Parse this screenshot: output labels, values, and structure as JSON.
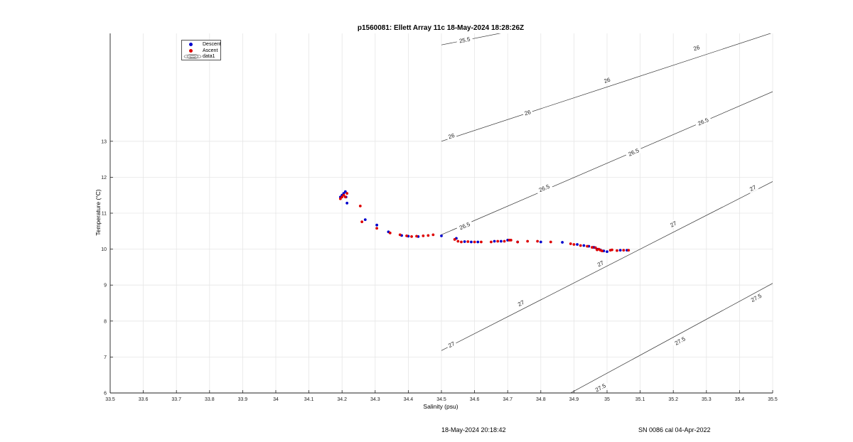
{
  "footer": {
    "date": "18-May-2024 20:18:42",
    "serial": "SN 0086 cal 04-Apr-2022"
  },
  "legend": {
    "items": [
      {
        "label": "Descent",
        "color": "#0000cc"
      },
      {
        "label": "Ascent",
        "color": "#dd0000"
      },
      {
        "label": "data1",
        "icon": "contour-ellipse-icon"
      }
    ]
  },
  "chart_data": {
    "type": "scatter",
    "title": "p1560081: Ellett Array 11c 18-May-2024 18:28:26Z",
    "xlabel": "Salinity (psu)",
    "ylabel": "Temperature (°C)",
    "xlim": [
      33.5,
      35.5
    ],
    "ylim": [
      6,
      16
    ],
    "grid": true,
    "legend_position": "top-left",
    "x_ticks": [
      "33.5",
      "33.6",
      "33.7",
      "33.8",
      "33.9",
      "34",
      "34.1",
      "34.2",
      "34.3",
      "34.4",
      "34.5",
      "34.6",
      "34.7",
      "34.8",
      "34.9",
      "35",
      "35.1",
      "35.2",
      "35.3",
      "35.4",
      "35.5"
    ],
    "y_ticks": [
      "6",
      "7",
      "8",
      "9",
      "10",
      "11",
      "12",
      "13"
    ],
    "series": [
      {
        "name": "Descent",
        "color": "#0000cc",
        "x": [
          34.195,
          34.2,
          34.205,
          34.21,
          34.212,
          34.215,
          34.27,
          34.305,
          34.34,
          34.38,
          34.4,
          34.43,
          34.5,
          34.545,
          34.57,
          34.59,
          34.61,
          34.66,
          34.68,
          34.7,
          34.73,
          34.8,
          34.865,
          34.91,
          34.93,
          34.945,
          34.96,
          34.97,
          34.98,
          34.99,
          35.0,
          35.04,
          35.06
        ],
        "y": [
          11.45,
          11.5,
          11.55,
          11.6,
          11.45,
          11.28,
          10.82,
          10.67,
          10.48,
          10.38,
          10.36,
          10.35,
          10.37,
          10.3,
          10.21,
          10.2,
          10.2,
          10.22,
          10.22,
          10.25,
          10.2,
          10.2,
          10.19,
          10.13,
          10.1,
          10.08,
          10.05,
          10.0,
          9.98,
          9.95,
          9.93,
          9.97,
          9.97
        ]
      },
      {
        "name": "Ascent",
        "color": "#dd0000",
        "x": [
          34.195,
          34.2,
          34.205,
          34.21,
          34.215,
          34.255,
          34.26,
          34.305,
          34.345,
          34.375,
          34.395,
          34.41,
          34.425,
          34.445,
          34.46,
          34.475,
          34.54,
          34.55,
          34.56,
          34.58,
          34.6,
          34.62,
          34.65,
          34.67,
          34.69,
          34.705,
          34.71,
          34.73,
          34.76,
          34.79,
          34.83,
          34.89,
          34.9,
          34.92,
          34.94,
          34.955,
          34.965,
          34.97,
          34.975,
          34.98,
          34.985,
          35.01,
          35.015,
          35.03,
          35.05,
          35.065
        ],
        "y": [
          11.4,
          11.45,
          11.5,
          11.45,
          11.55,
          11.2,
          10.76,
          10.58,
          10.45,
          10.4,
          10.37,
          10.35,
          10.36,
          10.37,
          10.38,
          10.4,
          10.27,
          10.22,
          10.2,
          10.21,
          10.2,
          10.2,
          10.2,
          10.22,
          10.22,
          10.25,
          10.25,
          10.2,
          10.22,
          10.22,
          10.2,
          10.15,
          10.13,
          10.1,
          10.08,
          10.05,
          10.04,
          9.98,
          10.0,
          9.97,
          9.95,
          9.97,
          9.98,
          9.96,
          9.97,
          9.97
        ]
      }
    ],
    "contours": [
      {
        "label": "25.5",
        "line": [
          [
            34.5,
            15.68
          ],
          [
            35.5,
            17.5
          ]
        ],
        "labels_at": [
          [
            34.57,
            15.82
          ]
        ]
      },
      {
        "label": "26",
        "line": [
          [
            34.5,
            13.0
          ],
          [
            35.5,
            16.02
          ]
        ],
        "labels_at": [
          [
            34.53,
            13.15
          ],
          [
            34.76,
            13.8
          ],
          [
            35.0,
            14.7
          ],
          [
            35.27,
            15.6
          ]
        ]
      },
      {
        "label": "26.5",
        "line": [
          [
            34.5,
            10.4
          ],
          [
            35.5,
            14.38
          ]
        ],
        "labels_at": [
          [
            34.57,
            10.65
          ],
          [
            34.81,
            11.7
          ],
          [
            35.08,
            12.7
          ],
          [
            35.29,
            13.55
          ]
        ]
      },
      {
        "label": "27",
        "line": [
          [
            34.5,
            7.18
          ],
          [
            35.5,
            11.88
          ]
        ],
        "labels_at": [
          [
            34.53,
            7.35
          ],
          [
            34.74,
            8.5
          ],
          [
            34.98,
            9.6
          ],
          [
            35.2,
            10.7
          ],
          [
            35.44,
            11.7
          ]
        ]
      },
      {
        "label": "27.5",
        "line": [
          [
            34.88,
            5.95
          ],
          [
            35.5,
            9.05
          ]
        ],
        "labels_at": [
          [
            34.98,
            6.15
          ],
          [
            35.22,
            7.45
          ],
          [
            35.45,
            8.65
          ]
        ]
      }
    ]
  }
}
